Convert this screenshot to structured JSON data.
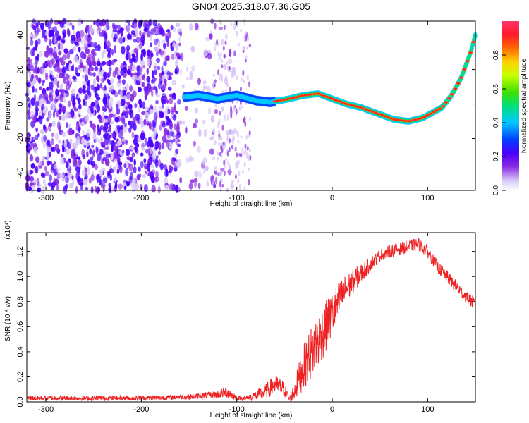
{
  "title": "GN04.2025.318.07.36.G05",
  "colors": {
    "snr_line": "#ee2222",
    "axis": "#000000",
    "background": "#ffffff",
    "colormap": [
      "#ffffff",
      "#d7c5f7",
      "#8a2be2",
      "#4b00ff",
      "#0040ff",
      "#00c8ff",
      "#00e07a",
      "#3fe000",
      "#c8ff00",
      "#ffd000",
      "#ff6a00",
      "#ff1a2a",
      "#ff3366"
    ]
  },
  "chart_data": [
    {
      "type": "heatmap",
      "title": "GN04.2025.318.07.36.G05",
      "xlabel": "Height of straight line (km)",
      "ylabel": "Frequency (Hz)",
      "xlim": [
        -320,
        150
      ],
      "ylim": [
        -50,
        48
      ],
      "xticks": [
        -300,
        -200,
        -100,
        0,
        100
      ],
      "xtick_labels": [
        "-300",
        "-200",
        "-100",
        "0",
        "100"
      ],
      "yticks": [
        -40,
        -20,
        0,
        20,
        40
      ],
      "ytick_labels": [
        "-40",
        "-20",
        "0",
        "20",
        "40"
      ],
      "colorbar": {
        "label": "Normalized spectral amplitude",
        "range": [
          0,
          1
        ],
        "ticks": [
          0.0,
          0.2,
          0.4,
          0.6,
          0.8
        ],
        "tick_labels": [
          "0.0",
          "0.2",
          "0.4",
          "0.6",
          "0.8"
        ]
      },
      "ridge": {
        "x": [
          -155,
          -140,
          -120,
          -100,
          -80,
          -65,
          -55,
          -45,
          -30,
          -15,
          0,
          15,
          30,
          50,
          65,
          80,
          95,
          105,
          115,
          125,
          135,
          145,
          150
        ],
        "y": [
          4,
          5,
          3,
          5,
          2,
          1,
          2,
          3,
          5,
          6,
          3,
          0,
          -2,
          -6,
          -9,
          -10,
          -8,
          -5,
          -2,
          5,
          15,
          30,
          40
        ]
      },
      "noise_region_x": [
        -320,
        -80
      ]
    },
    {
      "type": "line",
      "title": "",
      "xlabel": "Height of straight line (km)",
      "ylabel": "SNR (10 * v/v)",
      "y_multiplier_label": "(x10⁴)",
      "xlim": [
        -320,
        150
      ],
      "ylim": [
        0,
        1.35
      ],
      "xticks": [
        -300,
        -200,
        -100,
        0,
        100
      ],
      "xtick_labels": [
        "-300",
        "-200",
        "-100",
        "0",
        "100"
      ],
      "yticks": [
        0.0,
        0.2,
        0.4,
        0.6,
        0.8,
        1.0,
        1.2
      ],
      "ytick_labels": [
        "0.0",
        "0.2",
        "0.4",
        "0.6",
        "0.8",
        "1.0",
        "1.2"
      ],
      "series": [
        {
          "name": "SNR",
          "x": [
            -320,
            -250,
            -200,
            -150,
            -120,
            -110,
            -100,
            -90,
            -80,
            -70,
            -60,
            -50,
            -45,
            -40,
            -30,
            -20,
            -10,
            0,
            10,
            20,
            30,
            40,
            50,
            60,
            70,
            80,
            90,
            100,
            110,
            120,
            130,
            140,
            150
          ],
          "y": [
            0.03,
            0.03,
            0.03,
            0.04,
            0.06,
            0.08,
            0.03,
            0.03,
            0.05,
            0.08,
            0.14,
            0.1,
            0.02,
            0.08,
            0.28,
            0.42,
            0.55,
            0.7,
            0.85,
            0.95,
            1.02,
            1.1,
            1.17,
            1.2,
            1.22,
            1.24,
            1.26,
            1.2,
            1.08,
            1.0,
            0.92,
            0.84,
            0.78
          ],
          "noise": [
            0.02,
            0.02,
            0.02,
            0.02,
            0.03,
            0.05,
            0.02,
            0.02,
            0.04,
            0.06,
            0.08,
            0.06,
            0.02,
            0.08,
            0.18,
            0.22,
            0.22,
            0.18,
            0.14,
            0.1,
            0.08,
            0.06,
            0.05,
            0.05,
            0.05,
            0.05,
            0.05,
            0.05,
            0.05,
            0.05,
            0.05,
            0.05,
            0.05
          ]
        }
      ]
    }
  ]
}
